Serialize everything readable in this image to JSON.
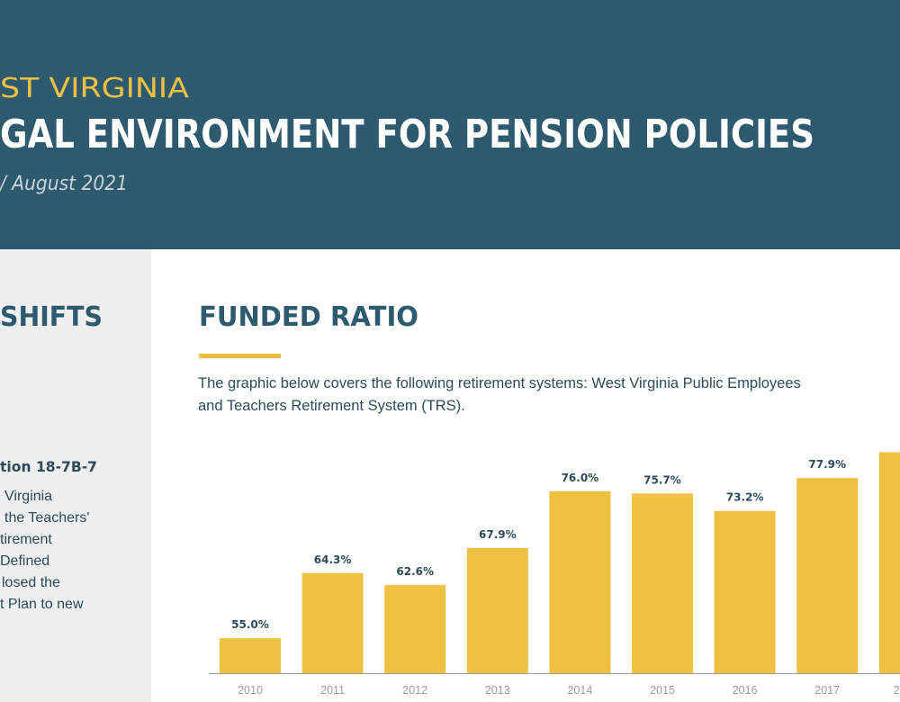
{
  "header": {
    "state": "ST VIRGINIA",
    "title": "GAL ENVIRONMENT FOR PENSION POLICIES",
    "date": "/ August 2021"
  },
  "sidebar": {
    "heading": "SHIFTS",
    "subheading": "tion 18-7B-7",
    "lines": [
      "Virginia",
      "the Teachers'",
      "tirement",
      "Defined",
      "losed the",
      "t Plan to new"
    ]
  },
  "section": {
    "heading": "FUNDED RATIO",
    "description": [
      "The graphic below covers the following retirement systems: West Virginia Public Employees",
      "and Teachers Retirement System (TRS)."
    ]
  },
  "chart_data": {
    "type": "bar",
    "categories": [
      "2010",
      "2011",
      "2012",
      "2013",
      "2014",
      "2015",
      "2016",
      "2017",
      "2"
    ],
    "values": [
      55.0,
      64.3,
      62.6,
      67.9,
      76.0,
      75.7,
      73.2,
      77.9,
      81.6
    ],
    "value_labels": [
      "55.0%",
      "64.3%",
      "62.6%",
      "67.9%",
      "76.0%",
      "75.7%",
      "73.2%",
      "77.9%",
      null
    ],
    "color": "#f0c043",
    "ylim": [
      50,
      85
    ]
  }
}
